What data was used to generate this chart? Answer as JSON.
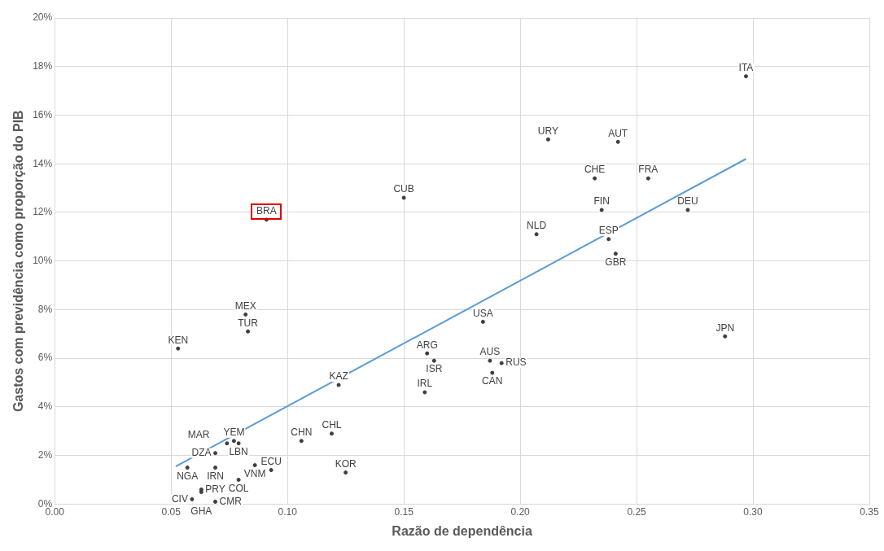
{
  "chart_data": {
    "type": "scatter",
    "xlabel": "Razão de dependência",
    "ylabel": "Gastos com previdência como proporção do PIB",
    "xlim": [
      0,
      0.35
    ],
    "xticks": [
      {
        "value": 0,
        "label": "0.00"
      },
      {
        "value": 0.05,
        "label": "0.05"
      },
      {
        "value": 0.1,
        "label": "0.10"
      },
      {
        "value": 0.15,
        "label": "0.15"
      },
      {
        "value": 0.2,
        "label": "0.20"
      },
      {
        "value": 0.25,
        "label": "0.25"
      },
      {
        "value": 0.3,
        "label": "0.30"
      },
      {
        "value": 0.35,
        "label": "0.35"
      }
    ],
    "ylim": [
      0,
      20
    ],
    "yticks": [
      {
        "value": 0,
        "label": "0%"
      },
      {
        "value": 2,
        "label": "2%"
      },
      {
        "value": 4,
        "label": "4%"
      },
      {
        "value": 6,
        "label": "6%"
      },
      {
        "value": 8,
        "label": "8%"
      },
      {
        "value": 10,
        "label": "10%"
      },
      {
        "value": 12,
        "label": "12%"
      },
      {
        "value": 14,
        "label": "14%"
      },
      {
        "value": 16,
        "label": "16%"
      },
      {
        "value": 18,
        "label": "18%"
      },
      {
        "value": 20,
        "label": "20%"
      }
    ],
    "grid": true,
    "legend": false,
    "series": [
      {
        "type": "scatter",
        "marker": "circle",
        "color": "#404040",
        "x": [
          0.297,
          0.212,
          0.242,
          0.232,
          0.255,
          0.15,
          0.091,
          0.235,
          0.272,
          0.207,
          0.238,
          0.241,
          0.082,
          0.083,
          0.184,
          0.288,
          0.053,
          0.16,
          0.163,
          0.187,
          0.192,
          0.188,
          0.122,
          0.159,
          0.119,
          0.106,
          0.077,
          0.074,
          0.079,
          0.069,
          0.057,
          0.069,
          0.086,
          0.093,
          0.079,
          0.125,
          0.063,
          0.063,
          0.059,
          0.069
        ],
        "values": [
          17.6,
          15.0,
          14.9,
          13.4,
          13.4,
          12.6,
          11.7,
          12.1,
          12.1,
          11.1,
          10.9,
          10.3,
          7.8,
          7.1,
          7.5,
          6.9,
          6.4,
          6.2,
          5.9,
          5.9,
          5.8,
          5.4,
          4.9,
          4.6,
          2.9,
          2.6,
          2.6,
          2.5,
          2.5,
          2.1,
          1.5,
          1.5,
          1.6,
          1.4,
          1.0,
          1.3,
          0.6,
          0.5,
          0.2,
          0.1
        ],
        "value_labels": [
          "ITA",
          "URY",
          "AUT",
          "CHE",
          "FRA",
          "CUB",
          "BRA",
          "FIN",
          "DEU",
          "NLD",
          "ESP",
          "GBR",
          "MEX",
          "TUR",
          "USA",
          "JPN",
          "KEN",
          "ARG",
          "ISR",
          "AUS",
          "RUS",
          "CAN",
          "KAZ",
          "IRL",
          "CHL",
          "CHN",
          "YEM",
          "MAR",
          "LBN",
          "DZA",
          "NGA",
          "IRN",
          "VNM",
          "ECU",
          "COL",
          "KOR",
          "PRY",
          "GHA",
          "CIV",
          "CMR"
        ]
      },
      {
        "type": "line",
        "color": "#5b9bd5",
        "x": [
          0.052,
          0.297
        ],
        "values": [
          1.55,
          14.2
        ]
      }
    ]
  }
}
